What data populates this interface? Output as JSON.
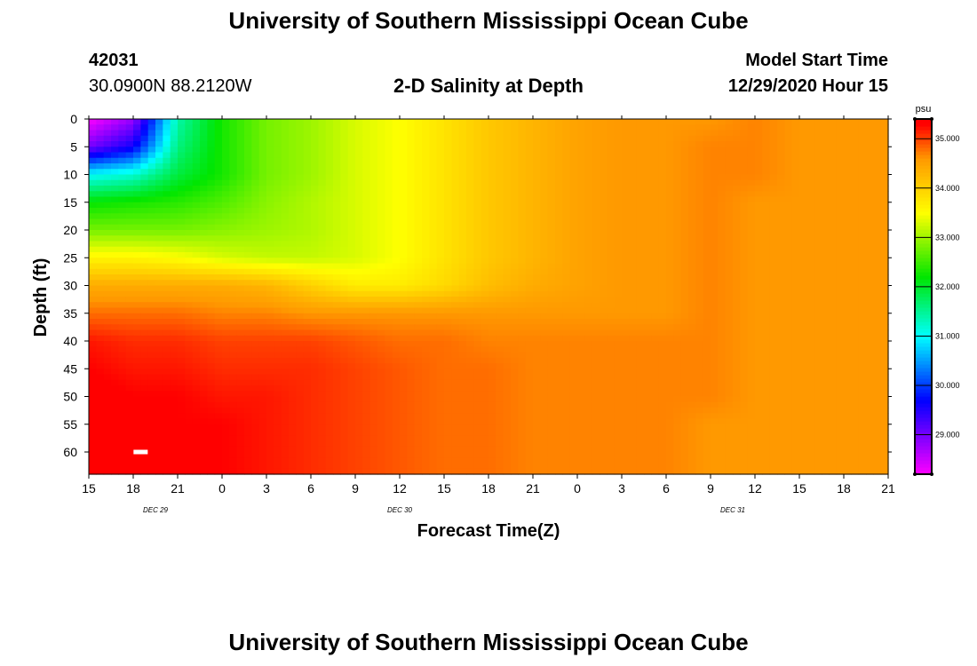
{
  "page": {
    "title_top": "University of Southern Mississippi Ocean Cube",
    "title_bottom": "University of Southern Mississippi Ocean Cube",
    "station_id": "42031",
    "station_coords": "30.0900N 88.2120W",
    "plot_title": "2-D Salinity at Depth",
    "model_start_label": "Model Start Time",
    "model_start_value": "12/29/2020 Hour 15"
  },
  "chart_data": {
    "type": "heatmap",
    "title": "2-D Salinity at Depth",
    "xlabel": "Forecast Time(Z)",
    "ylabel": "Depth (ft)",
    "x_hours": [
      0,
      3,
      6,
      9,
      12,
      15,
      18,
      21,
      24,
      27,
      30,
      33,
      36,
      39,
      42,
      45,
      48,
      51,
      54
    ],
    "x_tick_labels": [
      "15",
      "18",
      "21",
      "0",
      "3",
      "6",
      "9",
      "12",
      "15",
      "18",
      "21",
      "0",
      "3",
      "6",
      "9",
      "12",
      "15",
      "18",
      "21"
    ],
    "date_labels": [
      {
        "label": "DEC 29",
        "hour": 4.5
      },
      {
        "label": "DEC 30",
        "hour": 21
      },
      {
        "label": "DEC 31",
        "hour": 43.5
      }
    ],
    "y_ticks": [
      0,
      5,
      10,
      15,
      20,
      25,
      30,
      35,
      40,
      45,
      50,
      55,
      60
    ],
    "ylim": [
      0,
      64
    ],
    "xlim": [
      0,
      54
    ],
    "depths": [
      0,
      5,
      10,
      15,
      20,
      25,
      30,
      35,
      40,
      45,
      50,
      55,
      60,
      64
    ],
    "salinity_psu": [
      [
        28.2,
        28.8,
        31.4,
        32.3,
        32.8,
        33.0,
        33.3,
        33.5,
        33.8,
        34.1,
        34.3,
        34.5,
        34.6,
        34.6,
        34.6,
        34.7,
        34.6,
        34.6,
        34.6
      ],
      [
        29.0,
        29.6,
        31.6,
        32.3,
        32.8,
        33.0,
        33.3,
        33.5,
        33.8,
        34.1,
        34.3,
        34.5,
        34.6,
        34.6,
        34.7,
        34.7,
        34.6,
        34.6,
        34.6
      ],
      [
        31.0,
        31.2,
        31.9,
        32.3,
        32.8,
        33.0,
        33.3,
        33.5,
        33.8,
        34.1,
        34.3,
        34.5,
        34.6,
        34.6,
        34.7,
        34.7,
        34.6,
        34.6,
        34.6
      ],
      [
        32.2,
        32.3,
        32.4,
        32.6,
        32.9,
        33.1,
        33.3,
        33.5,
        33.8,
        34.1,
        34.3,
        34.5,
        34.6,
        34.6,
        34.7,
        34.6,
        34.6,
        34.6,
        34.6
      ],
      [
        32.8,
        32.8,
        32.8,
        32.9,
        33.0,
        33.1,
        33.3,
        33.5,
        33.8,
        34.1,
        34.3,
        34.5,
        34.6,
        34.6,
        34.7,
        34.6,
        34.6,
        34.6,
        34.6
      ],
      [
        33.6,
        33.6,
        33.5,
        33.3,
        33.2,
        33.2,
        33.3,
        33.5,
        33.8,
        34.1,
        34.3,
        34.5,
        34.6,
        34.6,
        34.7,
        34.6,
        34.6,
        34.6,
        34.6
      ],
      [
        34.4,
        34.4,
        34.4,
        34.4,
        34.3,
        34.0,
        33.7,
        33.7,
        33.9,
        34.2,
        34.4,
        34.5,
        34.6,
        34.6,
        34.7,
        34.6,
        34.6,
        34.6,
        34.6
      ],
      [
        34.8,
        34.8,
        34.8,
        34.7,
        34.7,
        34.6,
        34.6,
        34.6,
        34.6,
        34.6,
        34.6,
        34.6,
        34.6,
        34.6,
        34.7,
        34.6,
        34.6,
        34.6,
        34.6
      ],
      [
        35.2,
        35.1,
        35.1,
        35.0,
        35.0,
        35.0,
        34.9,
        34.8,
        34.8,
        34.7,
        34.7,
        34.7,
        34.7,
        34.7,
        34.7,
        34.6,
        34.6,
        34.6,
        34.6
      ],
      [
        35.3,
        35.2,
        35.2,
        35.1,
        35.1,
        35.1,
        35.0,
        34.9,
        34.8,
        34.8,
        34.7,
        34.7,
        34.7,
        34.7,
        34.7,
        34.6,
        34.6,
        34.6,
        34.6
      ],
      [
        35.4,
        35.3,
        35.3,
        35.2,
        35.2,
        35.1,
        35.0,
        34.9,
        34.8,
        34.8,
        34.7,
        34.7,
        34.7,
        34.7,
        34.7,
        34.6,
        34.6,
        34.6,
        34.6
      ],
      [
        35.4,
        35.4,
        35.3,
        35.3,
        35.2,
        35.1,
        35.0,
        34.9,
        34.8,
        34.8,
        34.7,
        34.7,
        34.7,
        34.7,
        34.6,
        34.6,
        34.6,
        34.6,
        34.6
      ],
      [
        35.4,
        35.4,
        35.4,
        35.3,
        35.2,
        35.1,
        35.0,
        34.9,
        34.8,
        34.8,
        34.7,
        34.7,
        34.7,
        34.7,
        34.6,
        34.6,
        34.6,
        34.6,
        34.6
      ],
      [
        35.4,
        35.4,
        35.4,
        35.3,
        35.2,
        35.1,
        35.0,
        34.9,
        34.8,
        34.8,
        34.7,
        34.7,
        34.7,
        34.7,
        34.6,
        34.6,
        34.6,
        34.6,
        34.6
      ]
    ],
    "colorbar": {
      "unit": "psu",
      "range": [
        28.2,
        35.4
      ],
      "tick_values": [
        29,
        30,
        31,
        32,
        33,
        34,
        35
      ],
      "tick_labels": [
        "29.000",
        "30.000",
        "31.000",
        "32.000",
        "33.000",
        "34.000",
        "35.000"
      ]
    },
    "marker": {
      "hour": 3.5,
      "depth": 60
    },
    "colors": {
      "axis": "#000000",
      "marker": "#ffffff",
      "palette": [
        "#ff00ff",
        "#0000ff",
        "#00ffff",
        "#00e600",
        "#ffff00",
        "#ff9900",
        "#ff0000"
      ]
    }
  }
}
